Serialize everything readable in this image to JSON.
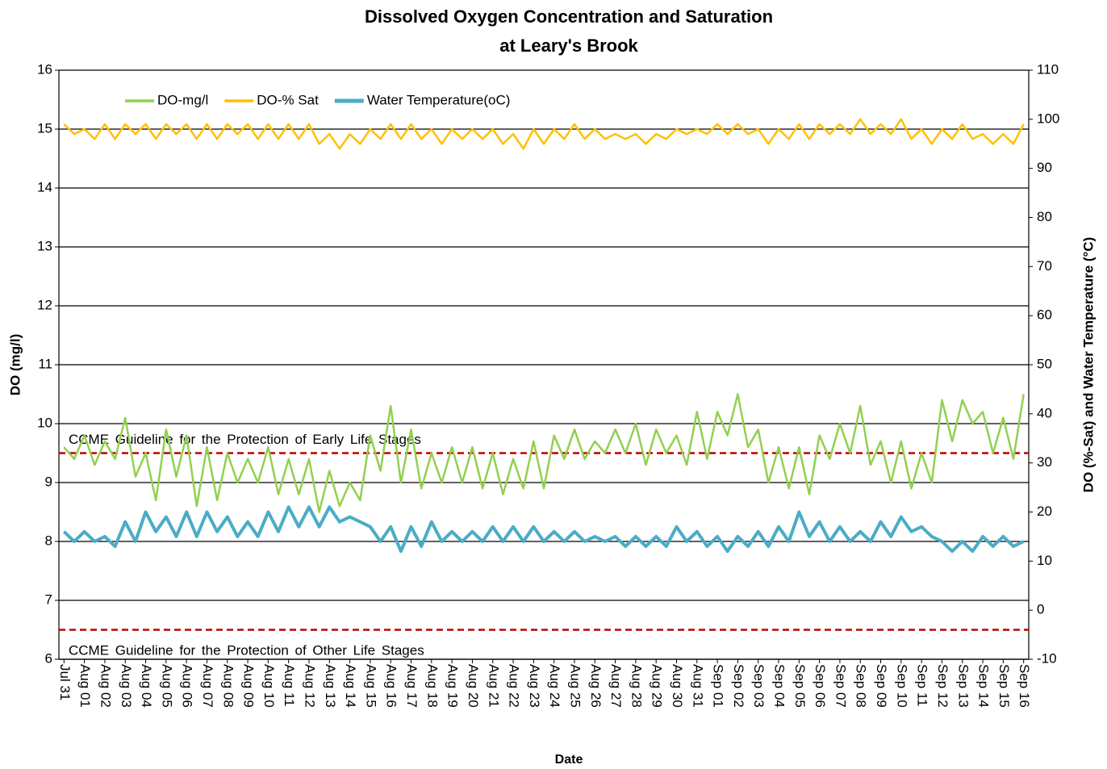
{
  "chart_data": {
    "type": "line",
    "title": "Dissolved Oxygen Concentration and Saturation",
    "subtitle": "at Leary's Brook",
    "x_label": "Date",
    "y_label": "DO (mg/l)",
    "y2_label": "DO (%-Sat) and Water Temperature  (°C)",
    "categories": [
      "Jul 31",
      null,
      "Aug 01",
      null,
      "Aug 02",
      null,
      "Aug 03",
      null,
      "Aug 04",
      null,
      "Aug 05",
      null,
      "Aug 06",
      null,
      "Aug 07",
      null,
      "Aug 08",
      null,
      "Aug 09",
      null,
      "Aug 10",
      null,
      "Aug 11",
      null,
      "Aug 12",
      null,
      "Aug 13",
      null,
      "Aug 14",
      null,
      "Aug 15",
      null,
      "Aug 16",
      null,
      "Aug 17",
      null,
      "Aug 18",
      null,
      "Aug 19",
      null,
      "Aug 20",
      null,
      "Aug 21",
      null,
      "Aug 22",
      null,
      "Aug 23",
      null,
      "Aug 24",
      null,
      "Aug 25",
      null,
      "Aug 26",
      null,
      "Aug 27",
      null,
      "Aug 28",
      null,
      "Aug 29",
      null,
      "Aug 30",
      null,
      "Aug 31",
      null,
      "Sep 01",
      null,
      "Sep 02",
      null,
      "Sep 03",
      null,
      "Sep 04",
      null,
      "Sep 05",
      null,
      "Sep 06",
      null,
      "Sep 07",
      null,
      "Sep 08",
      null,
      "Sep 09",
      null,
      "Sep 10",
      null,
      "Sep 11",
      null,
      "Sep 12",
      null,
      "Sep 13",
      null,
      "Sep 14",
      null,
      "Sep 15",
      null,
      "Sep 16"
    ],
    "series": [
      {
        "name": "DO-mg/l",
        "color": "#92d050",
        "values": [
          9.6,
          9.4,
          9.8,
          9.3,
          9.7,
          9.4,
          10.1,
          9.1,
          9.5,
          8.7,
          9.9,
          9.1,
          9.8,
          8.6,
          9.6,
          8.7,
          9.5,
          9.0,
          9.4,
          9.0,
          9.6,
          8.8,
          9.4,
          8.8,
          9.4,
          8.5,
          9.2,
          8.6,
          9.0,
          8.7,
          9.8,
          9.2,
          10.3,
          9.0,
          9.9,
          8.9,
          9.5,
          9.0,
          9.6,
          9.0,
          9.6,
          8.9,
          9.5,
          8.8,
          9.4,
          8.9,
          9.7,
          8.9,
          9.8,
          9.4,
          9.9,
          9.4,
          9.7,
          9.5,
          9.9,
          9.5,
          10.0,
          9.3,
          9.9,
          9.5,
          9.8,
          9.3,
          10.2,
          9.4,
          10.2,
          9.8,
          10.5,
          9.6,
          9.9,
          9.0,
          9.6,
          8.9,
          9.6,
          8.8,
          9.8,
          9.4,
          10.0,
          9.5,
          10.3,
          9.3,
          9.7,
          9.0,
          9.7,
          8.9,
          9.5,
          9.0,
          10.4,
          9.7,
          10.4,
          10.0,
          10.2,
          9.5,
          10.1,
          9.4,
          10.5
        ]
      },
      {
        "name": "DO-% Sat",
        "color": "#ffc000",
        "axis": "y2",
        "values": [
          99,
          97,
          98,
          96,
          99,
          96,
          99,
          97,
          99,
          96,
          99,
          97,
          99,
          96,
          99,
          96,
          99,
          97,
          99,
          96,
          99,
          96,
          99,
          96,
          99,
          95,
          97,
          94,
          97,
          95,
          98,
          96,
          99,
          96,
          99,
          96,
          98,
          95,
          98,
          96,
          98,
          96,
          98,
          95,
          97,
          94,
          98,
          95,
          98,
          96,
          99,
          96,
          98,
          96,
          97,
          96,
          97,
          95,
          97,
          96,
          98,
          97,
          98,
          97,
          99,
          97,
          99,
          97,
          98,
          95,
          98,
          96,
          99,
          96,
          99,
          97,
          99,
          97,
          100,
          97,
          99,
          97,
          100,
          96,
          98,
          95,
          98,
          96,
          99,
          96,
          97,
          95,
          97,
          95,
          99
        ]
      },
      {
        "name": "Water Temperature(oC)",
        "color": "#4bacc6",
        "axis": "y2",
        "values": [
          16,
          14,
          16,
          14,
          15,
          13,
          18,
          14,
          20,
          16,
          19,
          15,
          20,
          15,
          20,
          16,
          19,
          15,
          18,
          15,
          20,
          16,
          21,
          17,
          21,
          17,
          21,
          18,
          19,
          18,
          17,
          14,
          17,
          12,
          17,
          13,
          18,
          14,
          16,
          14,
          16,
          14,
          17,
          14,
          17,
          14,
          17,
          14,
          16,
          14,
          16,
          14,
          15,
          14,
          15,
          13,
          15,
          13,
          15,
          13,
          17,
          14,
          16,
          13,
          15,
          12,
          15,
          13,
          16,
          13,
          17,
          14,
          20,
          15,
          18,
          14,
          17,
          14,
          16,
          14,
          18,
          15,
          19,
          16,
          17,
          15,
          14,
          12,
          14,
          12,
          15,
          13,
          15,
          13,
          14
        ]
      }
    ],
    "reference_lines": [
      {
        "value": 9.5,
        "label": "CCME Guideline for the Protection of Early Life Stages",
        "color": "#c00000"
      },
      {
        "value": 6.5,
        "label": "CCME Guideline for the Protection of Other Life Stages",
        "color": "#c00000"
      }
    ],
    "ylim": [
      6,
      16
    ],
    "yticks": [
      6,
      7,
      8,
      9,
      10,
      11,
      12,
      13,
      14,
      15,
      16
    ],
    "y2lim": [
      -10,
      110
    ],
    "y2ticks": [
      -10,
      0,
      10,
      20,
      30,
      40,
      50,
      60,
      70,
      80,
      90,
      100,
      110
    ],
    "grid": true,
    "legend": "upper left"
  }
}
